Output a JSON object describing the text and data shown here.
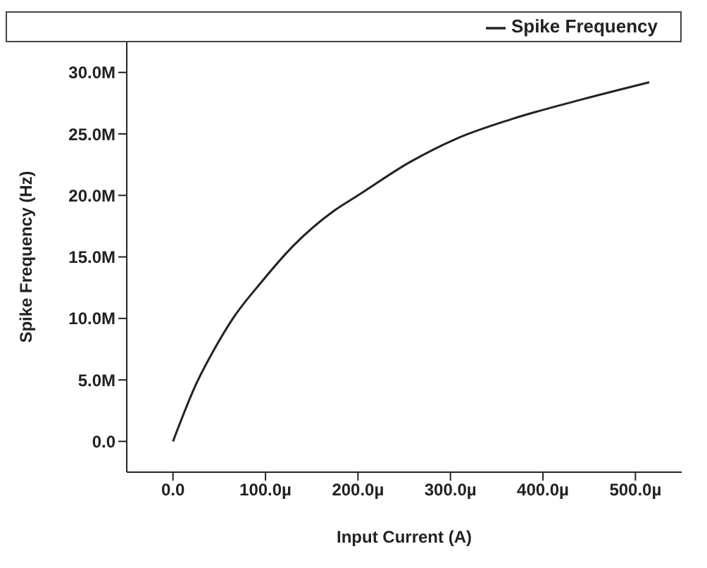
{
  "chart_data": {
    "type": "line",
    "xlabel": "Input Current (A)",
    "ylabel": "Spike Frequency (Hz)",
    "x": [
      0,
      24.6,
      44.7,
      64.8,
      95,
      130,
      175,
      200,
      256,
      306,
      366,
      442,
      515
    ],
    "series": [
      {
        "name": "Spike Frequency",
        "color": "#222222",
        "values": [
          0,
          4600000,
          7500000,
          10000000,
          12900000,
          15900000,
          18800000,
          20000000,
          22700000,
          24600000,
          26200000,
          27800000,
          29200000
        ]
      }
    ],
    "xlim": [
      -50,
      550
    ],
    "ylim": [
      -2500000,
      32500000
    ],
    "xticks": [
      {
        "value": 0,
        "label": "0.0"
      },
      {
        "value": 100,
        "label": "100.0µ"
      },
      {
        "value": 200,
        "label": "200.0µ"
      },
      {
        "value": 300,
        "label": "300.0µ"
      },
      {
        "value": 400,
        "label": "400.0µ"
      },
      {
        "value": 500,
        "label": "500.0µ"
      }
    ],
    "yticks": [
      {
        "value": 0,
        "label": "0.0"
      },
      {
        "value": 5000000,
        "label": "5.0M"
      },
      {
        "value": 10000000,
        "label": "10.0M"
      },
      {
        "value": 15000000,
        "label": "15.0M"
      },
      {
        "value": 20000000,
        "label": "20.0M"
      },
      {
        "value": 25000000,
        "label": "25.0M"
      },
      {
        "value": 30000000,
        "label": "30.0M"
      }
    ],
    "legend": "top right",
    "grid": false,
    "marker": "none",
    "line_style": "solid"
  }
}
